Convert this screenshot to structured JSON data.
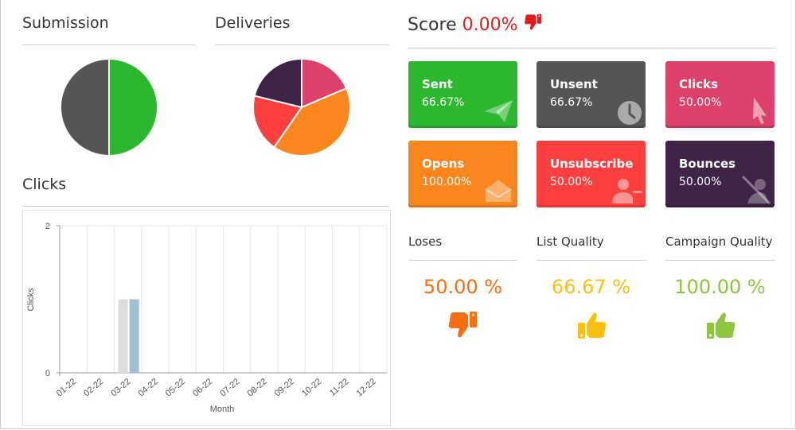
{
  "colors": {
    "green": "#2bb72e",
    "grey": "#555555",
    "pink": "#dd4069",
    "orange": "#fb861d",
    "red": "#fe3f3f",
    "purple": "#3e2447",
    "score_red": "#e41b1b",
    "loses": "#fb6d0f",
    "list_quality": "#fbbf10",
    "campaign_quality": "#8cc63f",
    "bar_grey": "#dcdcdc",
    "bar_blue": "#9dbfd6"
  },
  "submission": {
    "title": "Submission",
    "slices": [
      {
        "name": "green",
        "value": 50,
        "color": "#2bb72e"
      },
      {
        "name": "grey",
        "value": 50,
        "color": "#555555"
      }
    ]
  },
  "deliveries": {
    "title": "Deliveries",
    "slices": [
      {
        "name": "pink",
        "value": 18.6,
        "color": "#dd4069"
      },
      {
        "name": "orange",
        "value": 41.0,
        "color": "#fb861d"
      },
      {
        "name": "red",
        "value": 19.2,
        "color": "#fe3f3f"
      },
      {
        "name": "purple",
        "value": 21.2,
        "color": "#3e2447"
      }
    ]
  },
  "clicks": {
    "title": "Clicks"
  },
  "score": {
    "label": "Score",
    "value": "0.00%",
    "icon": "thumbs-down-icon"
  },
  "tiles": [
    {
      "label": "Sent",
      "value": "66.67%",
      "color": "#2bb72e",
      "icon": "paper-plane-icon"
    },
    {
      "label": "Unsent",
      "value": "66.67%",
      "color": "#555555",
      "icon": "clock-icon"
    },
    {
      "label": "Clicks",
      "value": "50.00%",
      "color": "#dd4069",
      "icon": "cursor-icon"
    },
    {
      "label": "Opens",
      "value": "100.00%",
      "color": "#fb861d",
      "icon": "envelope-open-icon"
    },
    {
      "label": "Unsubscribe",
      "value": "50.00%",
      "color": "#fe3f3f",
      "icon": "user-remove-icon"
    },
    {
      "label": "Bounces",
      "value": "50.00%",
      "color": "#3e2447",
      "icon": "bounce-icon"
    }
  ],
  "quality": [
    {
      "label": "Loses",
      "value": "50.00 %",
      "color": "#fb6d0f",
      "icon": "thumbs-down-icon"
    },
    {
      "label": "List Quality",
      "value": "66.67 %",
      "color": "#fbbf10",
      "icon": "thumbs-up-icon"
    },
    {
      "label": "Campaign Quality",
      "value": "100.00 %",
      "color": "#8cc63f",
      "icon": "thumbs-up-icon"
    }
  ],
  "chart_data": {
    "type": "bar",
    "categories": [
      "01-22",
      "02-22",
      "03-22",
      "04-22",
      "05-22",
      "06-22",
      "07-22",
      "08-22",
      "09-22",
      "10-22",
      "11-22",
      "12-22"
    ],
    "series": [
      {
        "values": [
          0,
          0,
          1,
          0,
          0,
          0,
          0,
          0,
          0,
          0,
          0,
          0
        ],
        "color": "#dcdcdc"
      },
      {
        "values": [
          0,
          0,
          1,
          0,
          0,
          0,
          0,
          0,
          0,
          0,
          0,
          0
        ],
        "color": "#9dbfd6"
      }
    ],
    "xlabel": "Month",
    "ylabel": "Clicks",
    "ylim": [
      0,
      2
    ],
    "yticks": [
      "0",
      "2"
    ],
    "grid": true
  }
}
